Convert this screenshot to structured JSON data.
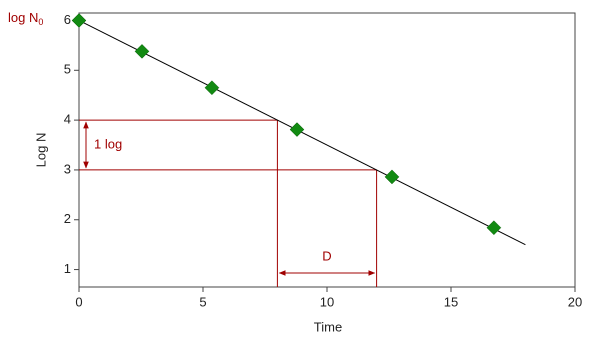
{
  "chart_data": {
    "type": "scatter",
    "x_label": "Time",
    "y_label": "Log N",
    "x": [
      0,
      2.54,
      5.36,
      8.79,
      12.62,
      16.73
    ],
    "values": [
      6,
      5.38,
      4.65,
      3.81,
      2.86,
      1.84
    ],
    "color": "#128a12",
    "fit_line": {
      "x": [
        0,
        18
      ],
      "y": [
        6,
        1.5
      ],
      "color": "#000000"
    },
    "reference_lines": [
      {
        "x": 8,
        "y": 4
      },
      {
        "x": 12,
        "y": 3
      }
    ],
    "reference_color": "#a00000",
    "y_span_label": "1 log",
    "x_span_label": "D",
    "y0_label": {
      "text": "log N",
      "subscript": "0"
    },
    "xlim": [
      0,
      20
    ],
    "ylim": [
      0.65,
      6.15
    ],
    "xticks": [
      0,
      5,
      10,
      15,
      20
    ],
    "yticks": [
      1,
      2,
      3,
      4,
      5,
      6
    ]
  }
}
